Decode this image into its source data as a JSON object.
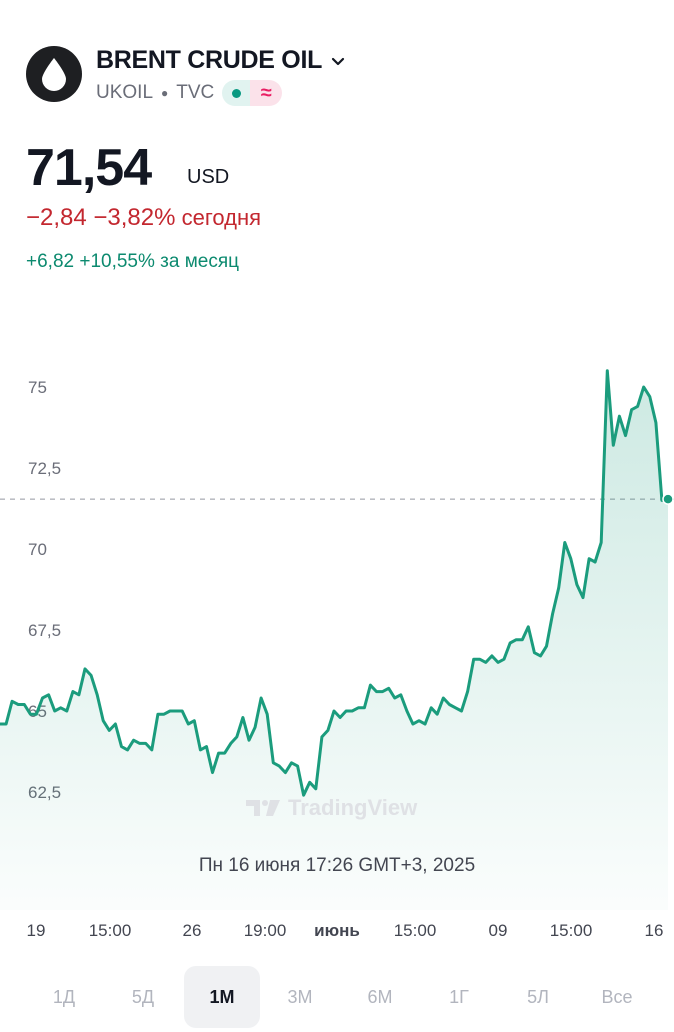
{
  "symbol": {
    "name": "BRENT CRUDE OIL",
    "ticker": "UKOIL",
    "exchange": "TVC",
    "market_status_icon": "green-dot-icon",
    "delay_icon": "approx-icon"
  },
  "quote": {
    "price": "71,54",
    "currency": "USD",
    "change_today": "−2,84 −3,82%",
    "change_today_label": "сегодня",
    "change_month": "+6,82 +10,55% за месяц",
    "colors": {
      "down": "#c3272f",
      "up": "#0c8a6f",
      "line": "#1b9c7d"
    }
  },
  "chart": {
    "watermark": "TradingView",
    "tooltip_date": "Пн 16 июня 17:26 GMT+3, 2025",
    "x_labels": [
      "19",
      "15:00",
      "26",
      "19:00",
      "июнь",
      "15:00",
      "09",
      "15:00",
      "16"
    ],
    "x_label_bold": "июнь"
  },
  "chart_data": {
    "type": "area",
    "title": "",
    "xlabel": "",
    "ylabel": "",
    "ylim": [
      61.0,
      76.0
    ],
    "y_ticks": [
      "75",
      "72,5",
      "70",
      "67,5",
      "65",
      "62,5"
    ],
    "y_tick_values": [
      75,
      72.5,
      70,
      67.5,
      65,
      62.5
    ],
    "last_price_line": 71.54,
    "grid": false,
    "series": [
      {
        "values": [
          64.6,
          64.6,
          65.3,
          65.2,
          65.2,
          64.9,
          64.9,
          65.4,
          65.5,
          65.0,
          65.1,
          65.0,
          65.6,
          65.5,
          66.3,
          66.1,
          65.5,
          64.7,
          64.4,
          64.6,
          63.9,
          63.8,
          64.1,
          64.0,
          64.0,
          63.8,
          64.9,
          64.9,
          65.0,
          65.0,
          65.0,
          64.6,
          64.7,
          63.8,
          63.9,
          63.1,
          63.7,
          63.7,
          64.0,
          64.2,
          64.8,
          64.1,
          64.5,
          65.4,
          64.9,
          63.4,
          63.3,
          63.1,
          63.4,
          63.3,
          62.4,
          62.8,
          62.6,
          64.2,
          64.4,
          65.0,
          64.8,
          65.0,
          65.0,
          65.1,
          65.1,
          65.8,
          65.6,
          65.6,
          65.7,
          65.4,
          65.5,
          65.0,
          64.6,
          64.7,
          64.6,
          65.1,
          64.9,
          65.4,
          65.2,
          65.1,
          65.0,
          65.6,
          66.6,
          66.6,
          66.5,
          66.7,
          66.5,
          66.6,
          67.1,
          67.2,
          67.2,
          67.6,
          66.8,
          66.7,
          67.0,
          68.0,
          68.8,
          70.2,
          69.7,
          68.9,
          68.5,
          69.7,
          69.6,
          70.2,
          75.5,
          73.2,
          74.1,
          73.5,
          74.3,
          74.4,
          75.0,
          74.7,
          73.9,
          71.5,
          71.54
        ]
      }
    ]
  },
  "timeframes": {
    "items": [
      "1Д",
      "5Д",
      "1М",
      "3М",
      "6М",
      "1Г",
      "5Л",
      "Все"
    ],
    "active": "1М"
  }
}
